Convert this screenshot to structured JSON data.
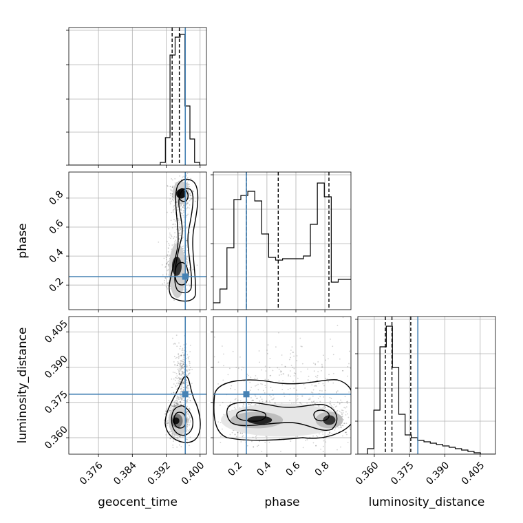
{
  "chart_data": {
    "type": "corner",
    "parameters": [
      {
        "name": "geocent_time",
        "label": "geocent_time",
        "range": [
          0.369,
          0.4015
        ],
        "ticks": [
          0.376,
          0.384,
          0.392,
          0.4
        ],
        "tick_labels": [
          "0.376",
          "0.384",
          "0.392",
          "0.400"
        ],
        "truth": 0.3965,
        "quantiles": [
          0.3934,
          0.3951,
          0.3965
        ]
      },
      {
        "name": "phase",
        "label": "phase",
        "range": [
          0.03,
          0.98
        ],
        "ticks": [
          0.2,
          0.4,
          0.6,
          0.8
        ],
        "tick_labels": [
          "0.2",
          "0.4",
          "0.6",
          "0.8"
        ],
        "truth": 0.258,
        "quantiles": [
          0.258,
          0.478,
          0.828
        ]
      },
      {
        "name": "luminosity_distance",
        "label": "luminosity_distance",
        "range": [
          0.353,
          0.4115
        ],
        "ticks": [
          0.36,
          0.375,
          0.39,
          0.405
        ],
        "tick_labels": [
          "0.360",
          "0.375",
          "0.390",
          "0.405"
        ],
        "truth": 0.3785,
        "quantiles": [
          0.3647,
          0.3675,
          0.3755
        ]
      }
    ],
    "histograms": [
      {
        "parameter": "geocent_time",
        "edges": [
          0.369,
          0.3906,
          0.3918,
          0.3929,
          0.3941,
          0.3953,
          0.3964,
          0.3976,
          0.3987,
          0.3999,
          0.4015
        ],
        "counts": [
          0,
          0.02,
          0.2,
          0.8,
          0.93,
          0.95,
          0.43,
          0.19,
          0.02,
          0
        ]
      },
      {
        "parameter": "phase",
        "edges": [
          0.03,
          0.076,
          0.124,
          0.172,
          0.22,
          0.268,
          0.316,
          0.364,
          0.412,
          0.46,
          0.508,
          0.556,
          0.604,
          0.652,
          0.7,
          0.748,
          0.796,
          0.844,
          0.892,
          0.94,
          0.98
        ],
        "counts": [
          0.05,
          0.15,
          0.45,
          0.8,
          0.83,
          0.86,
          0.79,
          0.55,
          0.38,
          0.36,
          0.37,
          0.37,
          0.37,
          0.39,
          0.62,
          0.92,
          0.82,
          0.2,
          0.22,
          0.22
        ]
      },
      {
        "parameter": "luminosity_distance",
        "edges": [
          0.353,
          0.3571,
          0.3598,
          0.3624,
          0.3651,
          0.3677,
          0.3704,
          0.3731,
          0.3757,
          0.3784,
          0.3811,
          0.3838,
          0.3864,
          0.3891,
          0.3918,
          0.3944,
          0.3971,
          0.3998,
          0.4024,
          0.4051,
          0.4115
        ],
        "counts": [
          0,
          0.04,
          0.32,
          0.78,
          0.93,
          0.63,
          0.29,
          0.14,
          0.12,
          0.1,
          0.09,
          0.08,
          0.07,
          0.06,
          0.05,
          0.04,
          0.03,
          0.02,
          0.01,
          0
        ]
      }
    ],
    "grid": true,
    "truth_color": "#4682b4",
    "line_color": "#000000"
  }
}
